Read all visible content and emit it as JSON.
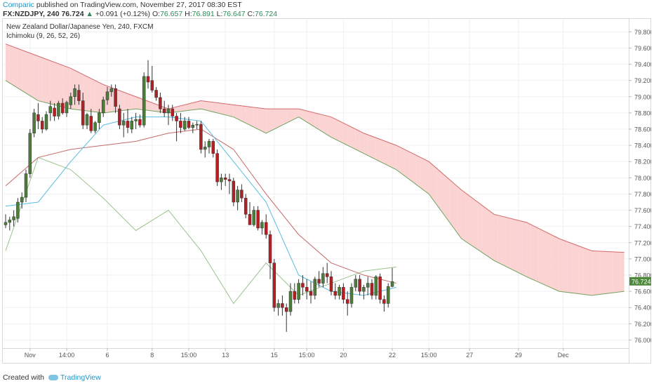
{
  "header": {
    "author": "Comparic",
    "published": "published on TradingView.com, November 27, 2017 08:30 EST",
    "symbol": "FX:NZDJPY, 240",
    "last": "76.724",
    "change": "+0.091 (+0.12%)",
    "open_label": "O:",
    "open": "76.657",
    "high_label": "H:",
    "high": "76.891",
    "low_label": "L:",
    "low": "76.647",
    "close_label": "C:",
    "close": "76.724"
  },
  "legend": {
    "instrument": "New Zealand Dollar/Japanese Yen, 240, FXCM",
    "indicator": "Ichimoku (9, 26, 52, 26)"
  },
  "footer": {
    "created_with": "Created with",
    "brand": "TradingView"
  },
  "colors": {
    "bull": "#4c7d3a",
    "bear": "#b51f24",
    "tenkan": "#5bbcdf",
    "kijun": "#c46a6a",
    "chikou": "#9bc28e",
    "spanA": "#6fa35f",
    "spanB": "#d46a6a",
    "cloud_bear": "#fbd3d3",
    "cloud_bull": "#d5ecd4",
    "last_tag": "#4c8a3a"
  },
  "chart_data": {
    "type": "candlestick",
    "ylim": [
      75.9,
      79.95
    ],
    "yticks": [
      "79.800",
      "79.600",
      "79.400",
      "79.200",
      "79.000",
      "78.800",
      "78.600",
      "78.400",
      "78.200",
      "78.000",
      "77.800",
      "77.600",
      "77.400",
      "77.200",
      "77.000",
      "76.800",
      "76.600",
      "76.400",
      "76.200",
      "76.000"
    ],
    "xticks": [
      {
        "label": "Nov",
        "bar": 6
      },
      {
        "label": "14:00",
        "bar": 15
      },
      {
        "label": "6",
        "bar": 25
      },
      {
        "label": "8",
        "bar": 36
      },
      {
        "label": "15:00",
        "bar": 45
      },
      {
        "label": "13",
        "bar": 54
      },
      {
        "label": "15",
        "bar": 66
      },
      {
        "label": "15:00",
        "bar": 74
      },
      {
        "label": "20",
        "bar": 83
      },
      {
        "label": "22",
        "bar": 95
      },
      {
        "label": "15:00",
        "bar": 104
      },
      {
        "label": "27",
        "bar": 114
      },
      {
        "label": "29",
        "bar": 126
      },
      {
        "label": "Dec",
        "bar": 137
      }
    ],
    "candles": [
      [
        77.42,
        77.55,
        77.38,
        77.45
      ],
      [
        77.45,
        77.52,
        77.35,
        77.48
      ],
      [
        77.48,
        77.6,
        77.4,
        77.52
      ],
      [
        77.5,
        77.75,
        77.45,
        77.7
      ],
      [
        77.7,
        77.82,
        77.62,
        77.76
      ],
      [
        77.76,
        78.1,
        77.7,
        78.05
      ],
      [
        78.05,
        78.6,
        78.0,
        78.55
      ],
      [
        78.55,
        78.85,
        78.5,
        78.8
      ],
      [
        78.78,
        78.92,
        78.6,
        78.7
      ],
      [
        78.7,
        78.75,
        78.55,
        78.6
      ],
      [
        78.6,
        78.82,
        78.58,
        78.78
      ],
      [
        78.8,
        78.95,
        78.7,
        78.88
      ],
      [
        78.86,
        78.92,
        78.7,
        78.76
      ],
      [
        78.76,
        78.95,
        78.72,
        78.92
      ],
      [
        78.92,
        78.98,
        78.78,
        78.8
      ],
      [
        78.8,
        78.95,
        78.75,
        78.93
      ],
      [
        78.9,
        79.05,
        78.85,
        79.0
      ],
      [
        79.0,
        79.15,
        78.9,
        79.1
      ],
      [
        79.08,
        79.15,
        78.9,
        78.95
      ],
      [
        78.95,
        79.05,
        78.6,
        78.65
      ],
      [
        78.65,
        78.8,
        78.6,
        78.78
      ],
      [
        78.76,
        78.85,
        78.55,
        78.58
      ],
      [
        78.58,
        78.7,
        78.55,
        78.68
      ],
      [
        78.68,
        78.85,
        78.6,
        78.8
      ],
      [
        78.8,
        79.0,
        78.75,
        78.96
      ],
      [
        78.96,
        79.12,
        78.9,
        79.06
      ],
      [
        79.06,
        79.15,
        79.0,
        79.1
      ],
      [
        79.1,
        79.15,
        78.8,
        78.88
      ],
      [
        78.85,
        78.9,
        78.6,
        78.65
      ],
      [
        78.65,
        78.8,
        78.5,
        78.7
      ],
      [
        78.7,
        78.85,
        78.55,
        78.62
      ],
      [
        78.6,
        78.75,
        78.55,
        78.7
      ],
      [
        78.7,
        78.8,
        78.6,
        78.72
      ],
      [
        78.72,
        78.78,
        78.62,
        78.65
      ],
      [
        78.65,
        79.3,
        78.62,
        79.25
      ],
      [
        79.25,
        79.45,
        79.1,
        79.18
      ],
      [
        79.2,
        79.38,
        79.05,
        79.08
      ],
      [
        79.08,
        79.12,
        78.95,
        78.99
      ],
      [
        78.99,
        79.05,
        78.8,
        78.85
      ],
      [
        78.85,
        78.95,
        78.75,
        78.8
      ],
      [
        78.8,
        78.9,
        78.65,
        78.85
      ],
      [
        78.85,
        78.9,
        78.7,
        78.76
      ],
      [
        78.76,
        78.8,
        78.45,
        78.7
      ],
      [
        78.7,
        78.8,
        78.55,
        78.62
      ],
      [
        78.6,
        78.75,
        78.58,
        78.7
      ],
      [
        78.7,
        78.75,
        78.6,
        78.62
      ],
      [
        78.62,
        78.68,
        78.55,
        78.65
      ],
      [
        78.65,
        78.7,
        78.6,
        78.66
      ],
      [
        78.66,
        78.7,
        78.3,
        78.35
      ],
      [
        78.35,
        78.45,
        78.25,
        78.38
      ],
      [
        78.38,
        78.48,
        78.3,
        78.45
      ],
      [
        78.45,
        78.48,
        78.25,
        78.3
      ],
      [
        78.3,
        78.35,
        77.9,
        77.95
      ],
      [
        77.95,
        78.05,
        77.85,
        78.0
      ],
      [
        78.0,
        78.05,
        77.9,
        77.98
      ],
      [
        77.98,
        78.05,
        77.8,
        77.96
      ],
      [
        77.96,
        78.0,
        77.65,
        77.7
      ],
      [
        77.7,
        77.9,
        77.6,
        77.85
      ],
      [
        77.85,
        77.92,
        77.7,
        77.75
      ],
      [
        77.75,
        77.8,
        77.5,
        77.55
      ],
      [
        77.55,
        77.7,
        77.45,
        77.42
      ],
      [
        77.42,
        77.65,
        77.4,
        77.6
      ],
      [
        77.6,
        77.65,
        77.35,
        77.38
      ],
      [
        77.38,
        77.48,
        77.3,
        77.45
      ],
      [
        77.45,
        77.55,
        77.25,
        77.3
      ],
      [
        77.3,
        77.35,
        76.75,
        76.95
      ],
      [
        76.95,
        77.0,
        76.35,
        76.4
      ],
      [
        76.4,
        76.5,
        76.3,
        76.45
      ],
      [
        76.45,
        76.55,
        76.3,
        76.4
      ],
      [
        76.4,
        76.45,
        76.1,
        76.35
      ],
      [
        76.35,
        76.7,
        76.3,
        76.6
      ],
      [
        76.6,
        76.7,
        76.45,
        76.5
      ],
      [
        76.5,
        76.75,
        76.45,
        76.7
      ],
      [
        76.7,
        76.8,
        76.55,
        76.65
      ],
      [
        76.65,
        76.75,
        76.5,
        76.6
      ],
      [
        76.6,
        76.72,
        76.45,
        76.55
      ],
      [
        76.55,
        76.78,
        76.5,
        76.75
      ],
      [
        76.75,
        76.85,
        76.65,
        76.7
      ],
      [
        76.7,
        76.9,
        76.65,
        76.82
      ],
      [
        76.82,
        76.95,
        76.7,
        76.78
      ],
      [
        76.78,
        76.85,
        76.55,
        76.6
      ],
      [
        76.6,
        76.7,
        76.5,
        76.55
      ],
      [
        76.55,
        76.68,
        76.5,
        76.65
      ],
      [
        76.65,
        76.7,
        76.45,
        76.5
      ],
      [
        76.5,
        76.6,
        76.3,
        76.45
      ],
      [
        76.45,
        76.7,
        76.4,
        76.65
      ],
      [
        76.65,
        76.8,
        76.6,
        76.75
      ],
      [
        76.75,
        76.8,
        76.55,
        76.6
      ],
      [
        76.6,
        76.68,
        76.5,
        76.65
      ],
      [
        76.65,
        76.78,
        76.55,
        76.7
      ],
      [
        76.7,
        76.75,
        76.5,
        76.55
      ],
      [
        76.55,
        76.8,
        76.5,
        76.78
      ],
      [
        76.78,
        76.82,
        76.45,
        76.5
      ],
      [
        76.5,
        76.55,
        76.35,
        76.45
      ],
      [
        76.45,
        76.7,
        76.4,
        76.66
      ],
      [
        76.66,
        76.89,
        76.65,
        76.72
      ]
    ],
    "bar_x": [
      [
        0,
        6
      ],
      [
        6,
        12
      ],
      [
        12,
        18
      ],
      [
        18,
        24
      ],
      [
        24,
        30
      ],
      [
        30,
        36
      ],
      [
        36,
        42
      ],
      [
        42,
        48
      ],
      [
        48,
        54
      ],
      [
        54,
        60
      ],
      [
        60,
        66
      ],
      [
        66,
        72
      ],
      [
        72,
        78
      ],
      [
        78,
        84
      ],
      [
        84,
        90
      ],
      [
        90,
        96
      ]
    ],
    "last_price": "76.724",
    "tenkan": [
      [
        0,
        77.65
      ],
      [
        8,
        77.7
      ],
      [
        16,
        78.2
      ],
      [
        24,
        78.65
      ],
      [
        32,
        78.75
      ],
      [
        40,
        78.75
      ],
      [
        48,
        78.7
      ],
      [
        56,
        78.2
      ],
      [
        64,
        77.7
      ],
      [
        72,
        76.8
      ],
      [
        80,
        76.6
      ],
      [
        88,
        76.55
      ],
      [
        96,
        76.65
      ]
    ],
    "kijun": [
      [
        0,
        77.9
      ],
      [
        8,
        78.25
      ],
      [
        16,
        78.35
      ],
      [
        24,
        78.4
      ],
      [
        32,
        78.45
      ],
      [
        40,
        78.55
      ],
      [
        48,
        78.6
      ],
      [
        56,
        78.35
      ],
      [
        64,
        77.8
      ],
      [
        72,
        77.3
      ],
      [
        80,
        76.95
      ],
      [
        88,
        76.8
      ],
      [
        96,
        76.7
      ]
    ],
    "chikou": [
      [
        0,
        77.1
      ],
      [
        8,
        78.25
      ],
      [
        16,
        78.1
      ],
      [
        24,
        77.75
      ],
      [
        32,
        77.35
      ],
      [
        40,
        77.6
      ],
      [
        48,
        77.1
      ],
      [
        56,
        76.45
      ],
      [
        64,
        76.95
      ],
      [
        72,
        76.55
      ],
      [
        80,
        76.7
      ],
      [
        88,
        76.85
      ],
      [
        96,
        76.9
      ]
    ],
    "spanA": [
      [
        0,
        79.2
      ],
      [
        8,
        78.95
      ],
      [
        16,
        78.85
      ],
      [
        24,
        78.8
      ],
      [
        32,
        78.85
      ],
      [
        40,
        78.8
      ],
      [
        48,
        78.85
      ],
      [
        56,
        78.75
      ],
      [
        64,
        78.55
      ],
      [
        72,
        78.75
      ],
      [
        80,
        78.5
      ],
      [
        88,
        78.3
      ],
      [
        96,
        78.1
      ],
      [
        104,
        77.8
      ],
      [
        112,
        77.25
      ],
      [
        120,
        76.98
      ],
      [
        128,
        76.78
      ],
      [
        136,
        76.6
      ],
      [
        144,
        76.55
      ],
      [
        152,
        76.6
      ]
    ],
    "spanB": [
      [
        0,
        79.65
      ],
      [
        8,
        79.5
      ],
      [
        16,
        79.35
      ],
      [
        24,
        79.15
      ],
      [
        32,
        79.0
      ],
      [
        40,
        78.85
      ],
      [
        48,
        78.95
      ],
      [
        56,
        78.9
      ],
      [
        64,
        78.85
      ],
      [
        72,
        78.85
      ],
      [
        80,
        78.75
      ],
      [
        88,
        78.55
      ],
      [
        96,
        78.4
      ],
      [
        104,
        78.2
      ],
      [
        112,
        77.85
      ],
      [
        120,
        77.55
      ],
      [
        128,
        77.45
      ],
      [
        136,
        77.25
      ],
      [
        144,
        77.1
      ],
      [
        152,
        77.08
      ]
    ]
  }
}
